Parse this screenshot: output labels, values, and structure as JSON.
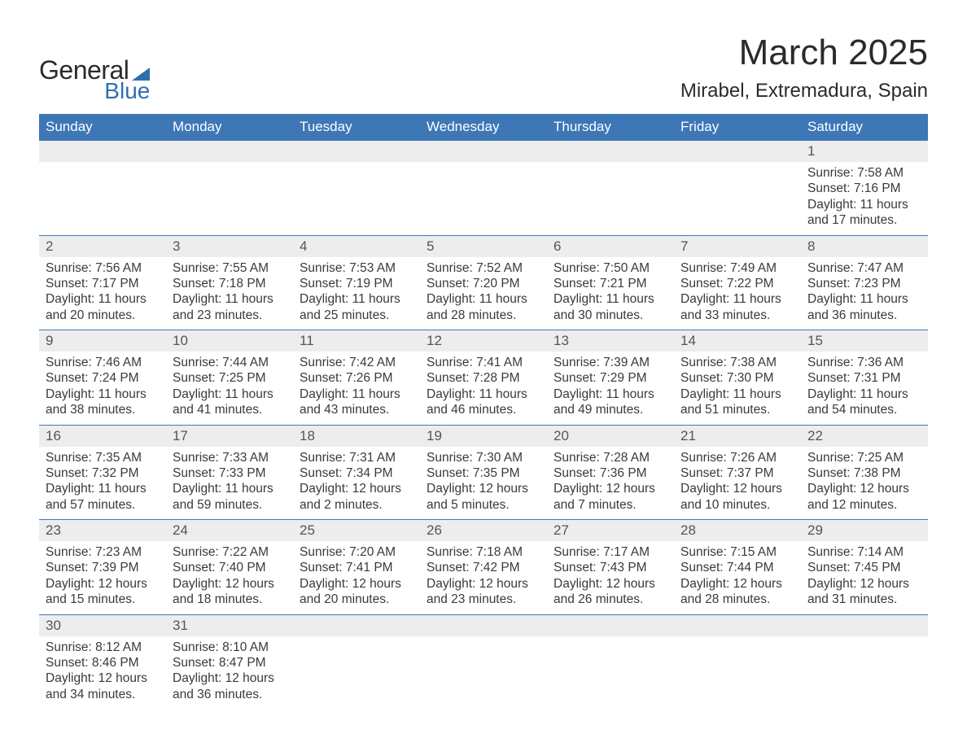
{
  "brand": {
    "line1": "General",
    "line2": "Blue",
    "accent_color": "#2f6fb0"
  },
  "title": "March 2025",
  "location": "Mirabel, Extremadura, Spain",
  "day_headers": [
    "Sunday",
    "Monday",
    "Tuesday",
    "Wednesday",
    "Thursday",
    "Friday",
    "Saturday"
  ],
  "colors": {
    "header_bg": "#3d77b6",
    "header_text": "#ffffff",
    "daynum_bg": "#ededed",
    "daynum_text": "#555555",
    "cell_border": "#3d77b6",
    "body_text": "#3a3a3a"
  },
  "typography": {
    "title_fontsize": 44,
    "location_fontsize": 24,
    "header_fontsize": 17,
    "daynum_fontsize": 17,
    "info_fontsize": 15.5
  },
  "labels": {
    "sunrise": "Sunrise:",
    "sunset": "Sunset:",
    "daylight": "Daylight:"
  },
  "weeks": [
    [
      {
        "day": null
      },
      {
        "day": null
      },
      {
        "day": null
      },
      {
        "day": null
      },
      {
        "day": null
      },
      {
        "day": null
      },
      {
        "day": 1,
        "sunrise": "7:58 AM",
        "sunset": "7:16 PM",
        "daylight": "11 hours and 17 minutes."
      }
    ],
    [
      {
        "day": 2,
        "sunrise": "7:56 AM",
        "sunset": "7:17 PM",
        "daylight": "11 hours and 20 minutes."
      },
      {
        "day": 3,
        "sunrise": "7:55 AM",
        "sunset": "7:18 PM",
        "daylight": "11 hours and 23 minutes."
      },
      {
        "day": 4,
        "sunrise": "7:53 AM",
        "sunset": "7:19 PM",
        "daylight": "11 hours and 25 minutes."
      },
      {
        "day": 5,
        "sunrise": "7:52 AM",
        "sunset": "7:20 PM",
        "daylight": "11 hours and 28 minutes."
      },
      {
        "day": 6,
        "sunrise": "7:50 AM",
        "sunset": "7:21 PM",
        "daylight": "11 hours and 30 minutes."
      },
      {
        "day": 7,
        "sunrise": "7:49 AM",
        "sunset": "7:22 PM",
        "daylight": "11 hours and 33 minutes."
      },
      {
        "day": 8,
        "sunrise": "7:47 AM",
        "sunset": "7:23 PM",
        "daylight": "11 hours and 36 minutes."
      }
    ],
    [
      {
        "day": 9,
        "sunrise": "7:46 AM",
        "sunset": "7:24 PM",
        "daylight": "11 hours and 38 minutes."
      },
      {
        "day": 10,
        "sunrise": "7:44 AM",
        "sunset": "7:25 PM",
        "daylight": "11 hours and 41 minutes."
      },
      {
        "day": 11,
        "sunrise": "7:42 AM",
        "sunset": "7:26 PM",
        "daylight": "11 hours and 43 minutes."
      },
      {
        "day": 12,
        "sunrise": "7:41 AM",
        "sunset": "7:28 PM",
        "daylight": "11 hours and 46 minutes."
      },
      {
        "day": 13,
        "sunrise": "7:39 AM",
        "sunset": "7:29 PM",
        "daylight": "11 hours and 49 minutes."
      },
      {
        "day": 14,
        "sunrise": "7:38 AM",
        "sunset": "7:30 PM",
        "daylight": "11 hours and 51 minutes."
      },
      {
        "day": 15,
        "sunrise": "7:36 AM",
        "sunset": "7:31 PM",
        "daylight": "11 hours and 54 minutes."
      }
    ],
    [
      {
        "day": 16,
        "sunrise": "7:35 AM",
        "sunset": "7:32 PM",
        "daylight": "11 hours and 57 minutes."
      },
      {
        "day": 17,
        "sunrise": "7:33 AM",
        "sunset": "7:33 PM",
        "daylight": "11 hours and 59 minutes."
      },
      {
        "day": 18,
        "sunrise": "7:31 AM",
        "sunset": "7:34 PM",
        "daylight": "12 hours and 2 minutes."
      },
      {
        "day": 19,
        "sunrise": "7:30 AM",
        "sunset": "7:35 PM",
        "daylight": "12 hours and 5 minutes."
      },
      {
        "day": 20,
        "sunrise": "7:28 AM",
        "sunset": "7:36 PM",
        "daylight": "12 hours and 7 minutes."
      },
      {
        "day": 21,
        "sunrise": "7:26 AM",
        "sunset": "7:37 PM",
        "daylight": "12 hours and 10 minutes."
      },
      {
        "day": 22,
        "sunrise": "7:25 AM",
        "sunset": "7:38 PM",
        "daylight": "12 hours and 12 minutes."
      }
    ],
    [
      {
        "day": 23,
        "sunrise": "7:23 AM",
        "sunset": "7:39 PM",
        "daylight": "12 hours and 15 minutes."
      },
      {
        "day": 24,
        "sunrise": "7:22 AM",
        "sunset": "7:40 PM",
        "daylight": "12 hours and 18 minutes."
      },
      {
        "day": 25,
        "sunrise": "7:20 AM",
        "sunset": "7:41 PM",
        "daylight": "12 hours and 20 minutes."
      },
      {
        "day": 26,
        "sunrise": "7:18 AM",
        "sunset": "7:42 PM",
        "daylight": "12 hours and 23 minutes."
      },
      {
        "day": 27,
        "sunrise": "7:17 AM",
        "sunset": "7:43 PM",
        "daylight": "12 hours and 26 minutes."
      },
      {
        "day": 28,
        "sunrise": "7:15 AM",
        "sunset": "7:44 PM",
        "daylight": "12 hours and 28 minutes."
      },
      {
        "day": 29,
        "sunrise": "7:14 AM",
        "sunset": "7:45 PM",
        "daylight": "12 hours and 31 minutes."
      }
    ],
    [
      {
        "day": 30,
        "sunrise": "8:12 AM",
        "sunset": "8:46 PM",
        "daylight": "12 hours and 34 minutes."
      },
      {
        "day": 31,
        "sunrise": "8:10 AM",
        "sunset": "8:47 PM",
        "daylight": "12 hours and 36 minutes."
      },
      {
        "day": null
      },
      {
        "day": null
      },
      {
        "day": null
      },
      {
        "day": null
      },
      {
        "day": null
      }
    ]
  ]
}
